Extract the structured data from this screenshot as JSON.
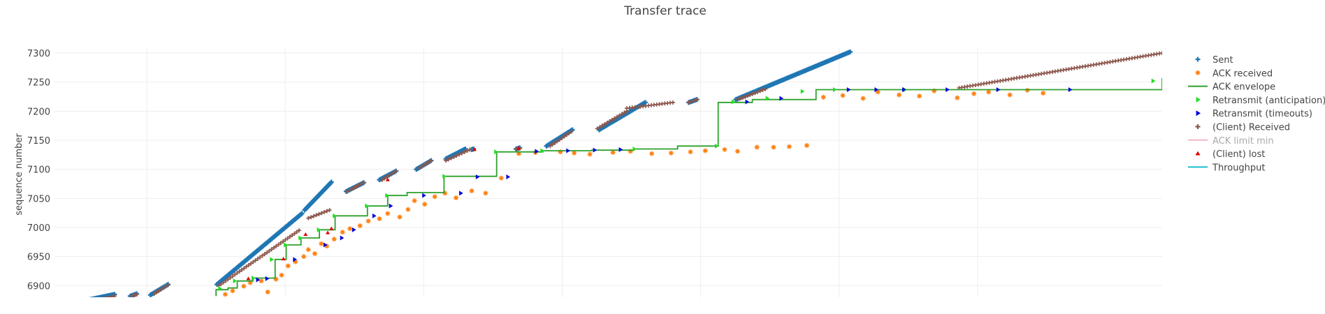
{
  "chart_data": {
    "type": "scatter",
    "title": "Transfer trace",
    "xlabel": "",
    "ylabel": "sequence number",
    "xlim": [
      0,
      120
    ],
    "ylim": [
      6880,
      7300
    ],
    "y_ticks": [
      6900,
      6950,
      7000,
      7050,
      7100,
      7150,
      7200,
      7250,
      7300
    ],
    "x_gridlines": [
      10,
      25,
      40,
      55,
      70,
      85,
      100
    ],
    "grid": true,
    "legend_position": "right",
    "legend": [
      {
        "name": "Sent",
        "color": "#1f77b4",
        "symbol": "cross"
      },
      {
        "name": "ACK received",
        "color": "#ff7f0e",
        "symbol": "asterisk"
      },
      {
        "name": "ACK envelope",
        "color": "#2ca02c",
        "symbol": "line"
      },
      {
        "name": "Retransmit (anticipation)",
        "color": "#22dd22",
        "symbol": "triangle-right"
      },
      {
        "name": "Retransmit (timeouts)",
        "color": "#0000dd",
        "symbol": "triangle-right"
      },
      {
        "name": "(Client) Received",
        "color": "#8c564b",
        "symbol": "cross"
      },
      {
        "name": "ACK limit min",
        "color": "#f4b6c2",
        "symbol": "line",
        "dimmed": true
      },
      {
        "name": "(Client) lost",
        "color": "#dd0000",
        "symbol": "triangle-up"
      },
      {
        "name": "Throughput",
        "color": "#17becf",
        "symbol": "line"
      }
    ],
    "sent_segments": [
      {
        "x": [
          3.5,
          6.5
        ],
        "y": [
          6875,
          6885
        ]
      },
      {
        "x": [
          8.2,
          8.9
        ],
        "y": [
          6882,
          6886
        ]
      },
      {
        "x": [
          10.4,
          12.3
        ],
        "y": [
          6884,
          6902
        ]
      },
      {
        "x": [
          17.6,
          26.8
        ],
        "y": [
          6902,
          7024
        ]
      },
      {
        "x": [
          27.1,
          30.0
        ],
        "y": [
          7030,
          7078
        ]
      },
      {
        "x": [
          31.6,
          33.5
        ],
        "y": [
          7062,
          7077
        ]
      },
      {
        "x": [
          35.2,
          37.0
        ],
        "y": [
          7082,
          7097
        ]
      },
      {
        "x": [
          39.2,
          40.8
        ],
        "y": [
          7100,
          7115
        ]
      },
      {
        "x": [
          42.4,
          44.5
        ],
        "y": [
          7118,
          7135
        ]
      },
      {
        "x": [
          45.2,
          45.4
        ],
        "y": [
          7134,
          7135
        ]
      },
      {
        "x": [
          50.0,
          50.4
        ],
        "y": [
          7135,
          7137
        ]
      },
      {
        "x": [
          53.3,
          56.1
        ],
        "y": [
          7140,
          7168
        ]
      },
      {
        "x": [
          59.0,
          64.0
        ],
        "y": [
          7168,
          7215
        ]
      },
      {
        "x": [
          68.7,
          69.6
        ],
        "y": [
          7215,
          7220
        ]
      },
      {
        "x": [
          73.8,
          86.2
        ],
        "y": [
          7220,
          7302
        ]
      }
    ],
    "received_segments": [
      {
        "x": [
          3.5,
          6.5
        ],
        "y": [
          6873,
          6882
        ]
      },
      {
        "x": [
          8.4,
          8.9
        ],
        "y": [
          6882,
          6885
        ]
      },
      {
        "x": [
          10.8,
          12.3
        ],
        "y": [
          6886,
          6901
        ]
      },
      {
        "x": [
          17.8,
          26.5
        ],
        "y": [
          6900,
          6995
        ]
      },
      {
        "x": [
          27.5,
          29.8
        ],
        "y": [
          7016,
          7030
        ]
      },
      {
        "x": [
          31.7,
          33.5
        ],
        "y": [
          7062,
          7077
        ]
      },
      {
        "x": [
          35.5,
          37.0
        ],
        "y": [
          7082,
          7097
        ]
      },
      {
        "x": [
          39.5,
          40.8
        ],
        "y": [
          7102,
          7115
        ]
      },
      {
        "x": [
          42.4,
          45.0
        ],
        "y": [
          7115,
          7134
        ]
      },
      {
        "x": [
          50.0,
          50.4
        ],
        "y": [
          7135,
          7136
        ]
      },
      {
        "x": [
          53.7,
          56.0
        ],
        "y": [
          7140,
          7165
        ]
      },
      {
        "x": [
          58.8,
          62.0
        ],
        "y": [
          7170,
          7200
        ]
      },
      {
        "x": [
          62.0,
          67.0
        ],
        "y": [
          7205,
          7215
        ]
      },
      {
        "x": [
          68.7,
          69.6
        ],
        "y": [
          7215,
          7220
        ]
      },
      {
        "x": [
          74.0,
          77.0
        ],
        "y": [
          7220,
          7238
        ]
      },
      {
        "x": [
          98.0,
          120.0
        ],
        "y": [
          7240,
          7300
        ]
      }
    ],
    "ack_envelope": {
      "x": [
        17.5,
        17.5,
        18.8,
        19.8,
        21.5,
        23.9,
        25.1,
        26.7,
        28.7,
        30.4,
        33.9,
        36.1,
        38.2,
        42.2,
        47.9,
        52.9,
        58.2,
        62.8,
        67.5,
        71.9,
        75.6,
        82.5,
        120.0
      ],
      "y": [
        6882,
        6893,
        6896,
        6908,
        6913,
        6945,
        6970,
        6982,
        6996,
        7020,
        7037,
        7055,
        7060,
        7088,
        7130,
        7132,
        7133,
        7135,
        7140,
        7215,
        7220,
        7237,
        7257
      ]
    },
    "ack_received_cloud": {
      "x": [
        18.5,
        19.3,
        20.5,
        21.2,
        22.4,
        23.1,
        24.0,
        24.6,
        25.3,
        26.1,
        27.0,
        27.5,
        28.2,
        28.9,
        29.5,
        30.3,
        31.2,
        32.0,
        33.1,
        34.0,
        35.2,
        36.1,
        37.4,
        38.3,
        39.0,
        40.1,
        41.2,
        42.3,
        43.5,
        45.2,
        46.7,
        48.4,
        50.3,
        52.1,
        54.8,
        56.3,
        58.0,
        60.5,
        62.4,
        64.7,
        66.8,
        68.9,
        70.5,
        72.6,
        74.0,
        76.1,
        77.9,
        79.6,
        81.5,
        83.3,
        85.4,
        87.6,
        89.2,
        91.5,
        93.7,
        95.3,
        97.8,
        99.6,
        101.2,
        103.5,
        105.4,
        107.1
      ],
      "y": [
        6885,
        6891,
        6899,
        6905,
        6908,
        6889,
        6911,
        6918,
        6934,
        6941,
        6950,
        6962,
        6955,
        6972,
        6968,
        6980,
        6992,
        6998,
        7003,
        7011,
        7015,
        7024,
        7018,
        7031,
        7046,
        7040,
        7053,
        7059,
        7051,
        7063,
        7059,
        7085,
        7127,
        7129,
        7130,
        7128,
        7126,
        7129,
        7131,
        7127,
        7128,
        7130,
        7132,
        7134,
        7131,
        7138,
        7138,
        7139,
        7141,
        7224,
        7227,
        7222,
        7233,
        7228,
        7226,
        7235,
        7223,
        7230,
        7233,
        7228,
        7236,
        7231
      ]
    },
    "retransmit_anticipation": {
      "x": [
        17.9,
        19.5,
        21.5,
        23.5,
        25.0,
        26.6,
        28.6,
        30.3,
        33.8,
        36.0,
        42.2,
        47.8,
        52.8,
        62.8,
        71.7,
        73.5,
        77.2,
        81.0,
        84.5,
        92.1,
        119.0
      ],
      "y": [
        6895,
        6908,
        6913,
        6945,
        6970,
        6982,
        6996,
        7020,
        7037,
        7055,
        7088,
        7130,
        7132,
        7135,
        7140,
        7216,
        7222,
        7234,
        7237,
        7237,
        7252
      ]
    },
    "retransmit_timeouts": {
      "x": [
        22.0,
        23.0,
        26.0,
        29.3,
        31.1,
        32.4,
        34.6,
        36.4,
        40.0,
        44.0,
        45.8,
        49.1,
        52.2,
        55.6,
        58.5,
        61.3,
        75.0,
        78.7,
        86.0,
        89.0,
        92.0,
        96.7,
        102.2,
        110.0
      ],
      "y": [
        6910,
        6912,
        6945,
        6970,
        6982,
        6996,
        7020,
        7037,
        7055,
        7059,
        7087,
        7087,
        7131,
        7132,
        7133,
        7134,
        7216,
        7222,
        7237,
        7237,
        7237,
        7237,
        7237,
        7237
      ]
    },
    "client_lost": {
      "x": [
        4.2,
        21.0,
        24.8,
        27.2,
        29.6,
        30.0,
        36.1,
        45.5,
        50.3
      ],
      "y": [
        6877,
        6912,
        6946,
        6988,
        6991,
        6998,
        7082,
        7134,
        7136
      ]
    }
  }
}
